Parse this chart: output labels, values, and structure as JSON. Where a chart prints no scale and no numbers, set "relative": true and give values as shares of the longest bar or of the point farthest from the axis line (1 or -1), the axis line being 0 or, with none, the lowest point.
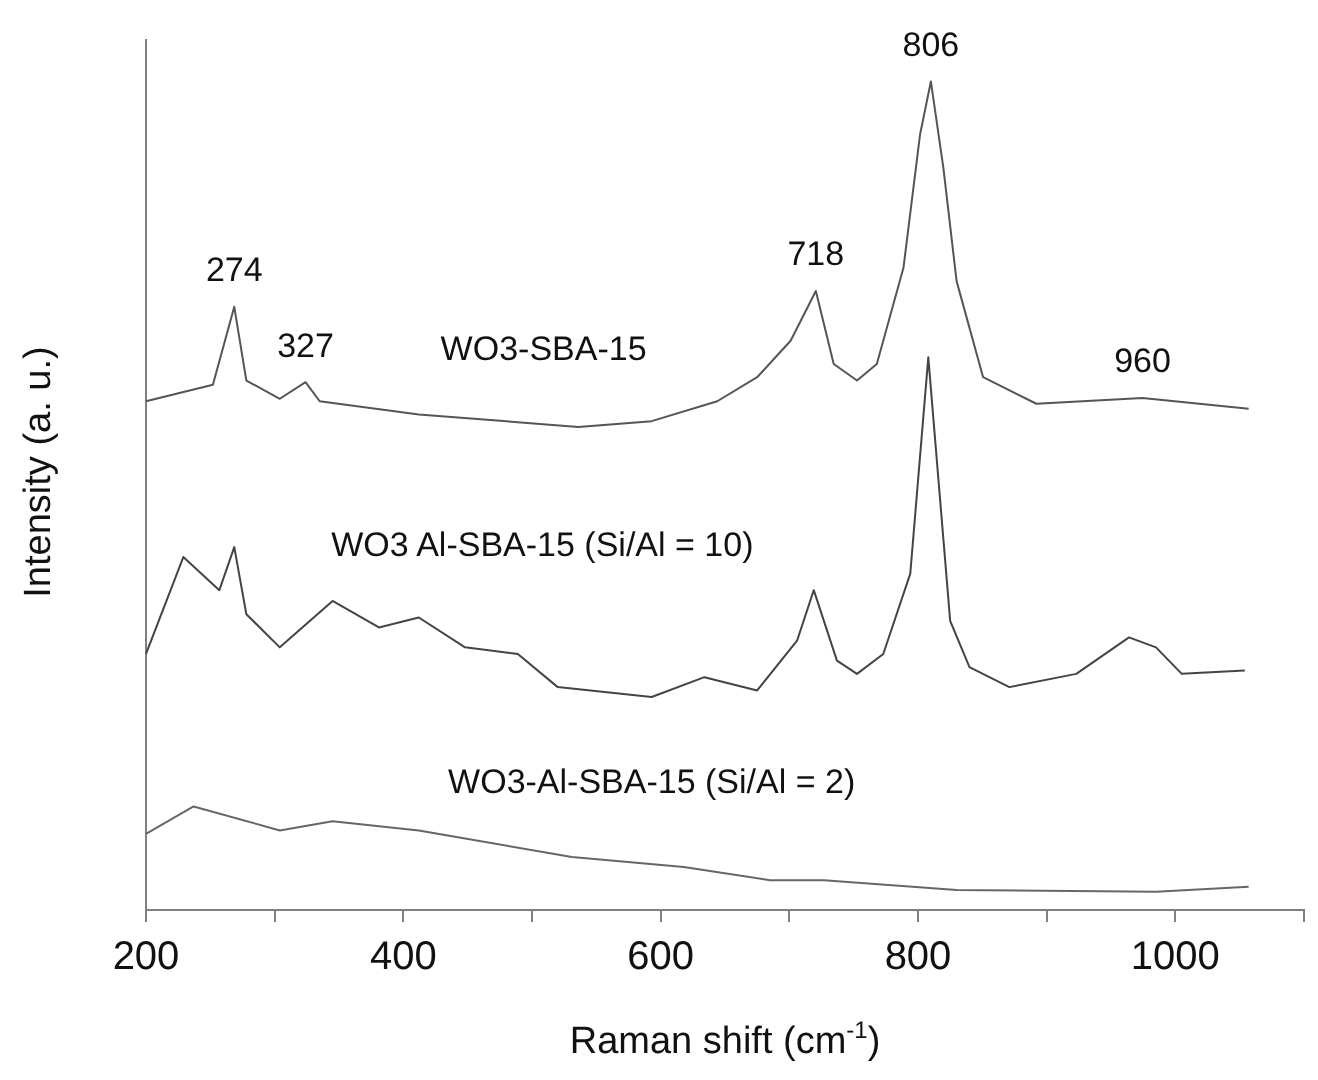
{
  "chart_data": {
    "type": "line",
    "relative": true,
    "xlabel": "Raman shift (cm$^{-1}$)",
    "ylabel": "Intensity (a. u.)",
    "xlim": [
      200,
      1100
    ],
    "xticks": [
      200,
      {
        "value": 300,
        "label": null
      },
      400,
      {
        "value": 500,
        "label": null
      },
      600,
      {
        "value": 700,
        "label": null
      },
      800,
      {
        "value": 900,
        "label": null
      },
      1000,
      {
        "value": 1100,
        "label": null
      }
    ],
    "grid": false,
    "legend": false,
    "marker": "none",
    "line_style": "solid",
    "series": [
      {
        "name": "WO3-SBA-15",
        "color": "#555555",
        "x": [
          200,
          252,
          268.6,
          278,
          304,
          324,
          335,
          412,
          536,
          593,
          644,
          675,
          701,
          720.6,
          734.5,
          752.6,
          768,
          788.7,
          801.6,
          810,
          819.7,
          830,
          850.6,
          892,
          974.5,
          1057
        ],
        "values": [
          0.614,
          0.634,
          0.728,
          0.639,
          0.617,
          0.637,
          0.614,
          0.598,
          0.583,
          0.59,
          0.614,
          0.643,
          0.687,
          0.747,
          0.659,
          0.639,
          0.659,
          0.775,
          0.936,
          1.0,
          0.896,
          0.759,
          0.643,
          0.611,
          0.618,
          0.605
        ]
      },
      {
        "name": "WO3 Al-SBA-15 (Si/Al = 10)",
        "color": "#444444",
        "x": [
          200,
          229,
          257,
          268.6,
          278,
          304,
          345,
          381,
          412,
          448,
          489,
          520,
          593,
          634,
          675,
          706,
          719,
          737,
          752.6,
          773,
          794,
          808,
          825,
          840,
          871,
          923,
          964,
          985,
          1005,
          1054
        ],
        "values": [
          0.309,
          0.426,
          0.386,
          0.438,
          0.357,
          0.317,
          0.373,
          0.341,
          0.353,
          0.317,
          0.309,
          0.269,
          0.257,
          0.281,
          0.265,
          0.325,
          0.386,
          0.301,
          0.285,
          0.309,
          0.406,
          0.667,
          0.349,
          0.293,
          0.269,
          0.285,
          0.329,
          0.317,
          0.285,
          0.289
        ]
      },
      {
        "name": "WO3-Al-SBA-15 (Si/Al = 2)",
        "color": "#666666",
        "x": [
          200,
          237,
          304,
          345,
          412,
          531,
          618,
          685,
          727,
          830,
          985,
          1057
        ],
        "values": [
          0.092,
          0.125,
          0.096,
          0.107,
          0.096,
          0.064,
          0.052,
          0.036,
          0.036,
          0.024,
          0.022,
          0.028
        ]
      }
    ],
    "annotations": [
      {
        "text": "274",
        "x": 268.6,
        "y": 0.728
      },
      {
        "text": "327",
        "x": 324,
        "y": 0.637
      },
      {
        "text": "718",
        "x": 720.6,
        "y": 0.747
      },
      {
        "text": "806",
        "x": 810,
        "y": 1.0
      },
      {
        "text": "960",
        "x": 974.5,
        "y": 0.618
      }
    ]
  }
}
